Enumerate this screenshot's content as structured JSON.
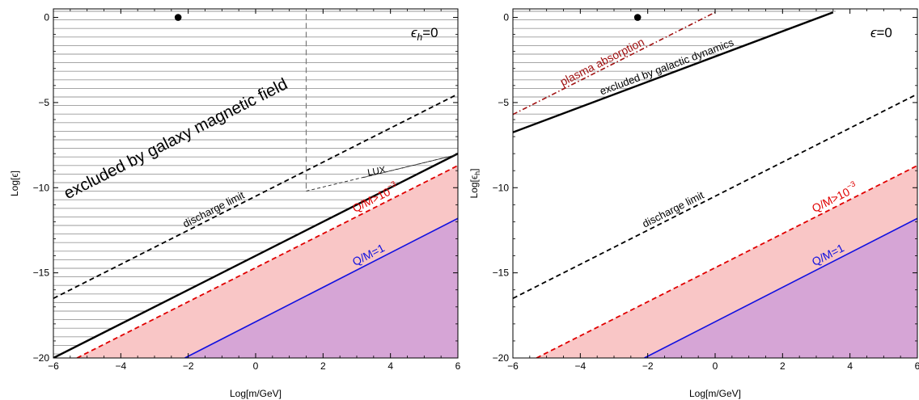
{
  "chart_data": [
    {
      "type": "line",
      "title": "",
      "xlabel": "Log[m/GeV]",
      "ylabel": "Log[ϵ]",
      "xlim": [
        -6,
        6
      ],
      "ylim": [
        -20,
        0.5
      ],
      "xticks": [
        -6,
        -4,
        -2,
        0,
        2,
        4,
        6
      ],
      "yticks": [
        0,
        -5,
        -10,
        -15,
        -20
      ],
      "xtick_labels": [
        "−6",
        "−4",
        "−2",
        "0",
        "2",
        "4",
        "6"
      ],
      "ytick_labels": [
        "0",
        "−5",
        "−10",
        "−15",
        "−20"
      ],
      "grid": false,
      "corner_label": {
        "main": "ϵ",
        "sub": "h",
        "rest": "=0"
      },
      "point": {
        "x": -2.3,
        "y": 0
      },
      "series": [
        {
          "name": "discharge limit",
          "style": "dashed",
          "color": "#000000",
          "x": [
            -6,
            6
          ],
          "y": [
            -16.5,
            -4.5
          ]
        },
        {
          "name": "",
          "style": "solid-thick",
          "color": "#000000",
          "x": [
            -6,
            6
          ],
          "y": [
            -20,
            -8
          ]
        },
        {
          "name": "Q/M>10^-3",
          "style": "dashed",
          "color": "#e00000",
          "x": [
            -5.3,
            6
          ],
          "y": [
            -20,
            -8.7
          ]
        },
        {
          "name": "Q/M=1",
          "style": "solid",
          "color": "#1010e0",
          "x": [
            -2.1,
            6
          ],
          "y": [
            -20,
            -11.8
          ]
        },
        {
          "name": "",
          "style": "dashed-gray",
          "color": "#777777",
          "x": [
            1.5,
            1.5
          ],
          "y": [
            0.2,
            -10.2
          ]
        }
      ],
      "regions": [
        {
          "name": "excluded by galaxy magnetic field",
          "fill": "hatch"
        },
        {
          "name": "Q/M>10^-3",
          "fill": "#f9c6c6"
        },
        {
          "name": "Q/M=1",
          "fill": "#d6a5d6"
        },
        {
          "name": "LUX",
          "fill": "none",
          "x": [
            1.5,
            6,
            6
          ],
          "y": [
            -10.2,
            -8.05,
            -8.05
          ],
          "apex_y": -8.05
        }
      ],
      "annotations": [
        {
          "text": "excluded by galaxy magnetic field"
        },
        {
          "text": "discharge limit"
        },
        {
          "text": "LUX"
        },
        {
          "text_main": "Q/M>10",
          "text_sup": "−3"
        },
        {
          "text": "Q/M=1"
        }
      ]
    },
    {
      "type": "line",
      "title": "",
      "xlabel": "Log[m/GeV]",
      "ylabel": "Log[ϵh]",
      "ylabel_main": "Log[ϵ",
      "ylabel_sub": "h",
      "ylabel_close": "]",
      "xlim": [
        -6,
        6
      ],
      "ylim": [
        -20,
        0.5
      ],
      "xticks": [
        -6,
        -4,
        -2,
        0,
        2,
        4,
        6
      ],
      "yticks": [
        0,
        -5,
        -10,
        -15,
        -20
      ],
      "xtick_labels": [
        "−6",
        "−4",
        "−2",
        "0",
        "2",
        "4",
        "6"
      ],
      "ytick_labels": [
        "0",
        "−5",
        "−10",
        "−15",
        "−20"
      ],
      "grid": false,
      "corner_label": {
        "main": "ϵ",
        "sub": "",
        "rest": "=0"
      },
      "point": {
        "x": -2.3,
        "y": 0
      },
      "series": [
        {
          "name": "plasma absorption",
          "style": "dashdot",
          "color": "#a01010",
          "x": [
            -6,
            0
          ],
          "y": [
            -5.7,
            0.3
          ]
        },
        {
          "name": "excluded by galactic dynamics",
          "style": "solid-thick",
          "color": "#000000",
          "x": [
            -6,
            3.5
          ],
          "y": [
            -6.75,
            0.3
          ]
        },
        {
          "name": "discharge limit",
          "style": "dashed",
          "color": "#000000",
          "x": [
            -6,
            6
          ],
          "y": [
            -16.5,
            -4.5
          ]
        },
        {
          "name": "Q/M>10^-3",
          "style": "dashed",
          "color": "#e00000",
          "x": [
            -5.3,
            6
          ],
          "y": [
            -20,
            -8.7
          ]
        },
        {
          "name": "Q/M=1",
          "style": "solid",
          "color": "#1010e0",
          "x": [
            -2.1,
            6
          ],
          "y": [
            -20,
            -11.8
          ]
        }
      ],
      "regions": [
        {
          "name": "excluded by galactic dynamics",
          "fill": "hatch"
        },
        {
          "name": "Q/M>10^-3",
          "fill": "#f9c6c6"
        },
        {
          "name": "Q/M=1",
          "fill": "#d6a5d6"
        }
      ],
      "annotations": [
        {
          "text": "plasma absorption"
        },
        {
          "text": "excluded by galactic dynamics"
        },
        {
          "text": "discharge limit"
        },
        {
          "text_main": "Q/M>10",
          "text_sup": "−3"
        },
        {
          "text": "Q/M=1"
        }
      ]
    }
  ]
}
